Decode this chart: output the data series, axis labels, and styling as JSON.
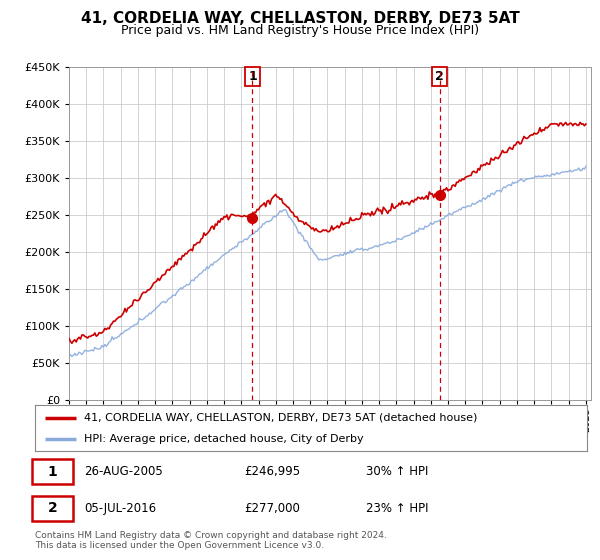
{
  "title": "41, CORDELIA WAY, CHELLASTON, DERBY, DE73 5AT",
  "subtitle": "Price paid vs. HM Land Registry's House Price Index (HPI)",
  "ylim": [
    0,
    450000
  ],
  "yticks": [
    0,
    50000,
    100000,
    150000,
    200000,
    250000,
    300000,
    350000,
    400000,
    450000
  ],
  "sale1_date_num": 2005.65,
  "sale1_price": 246995,
  "sale1_hpi_pct": "30% ↑ HPI",
  "sale1_date_str": "26-AUG-2005",
  "sale2_date_num": 2016.51,
  "sale2_price": 277000,
  "sale2_hpi_pct": "23% ↑ HPI",
  "sale2_date_str": "05-JUL-2016",
  "legend_label1": "41, CORDELIA WAY, CHELLASTON, DERBY, DE73 5AT (detached house)",
  "legend_label2": "HPI: Average price, detached house, City of Derby",
  "footer": "Contains HM Land Registry data © Crown copyright and database right 2024.\nThis data is licensed under the Open Government Licence v3.0.",
  "line1_color": "#cc0000",
  "line2_color": "#88aadd",
  "plot_bg": "#ffffff",
  "grid_color": "#cccccc",
  "sale_marker_color": "#cc0000",
  "vline_color": "#cc0000",
  "title_fontsize": 11,
  "subtitle_fontsize": 9
}
